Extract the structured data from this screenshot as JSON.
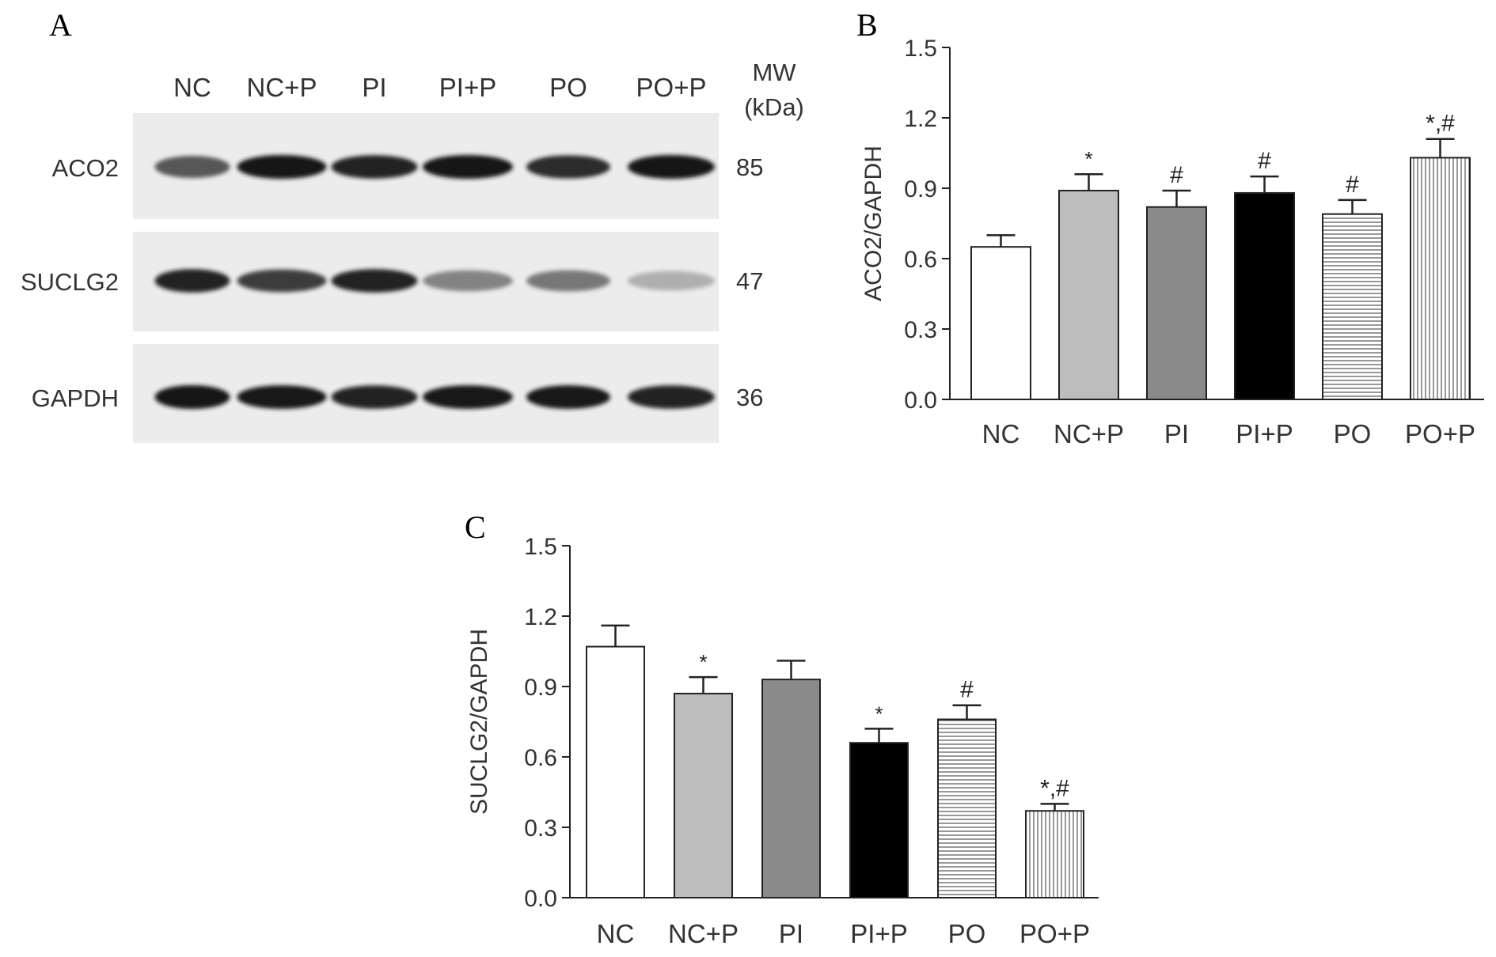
{
  "panel_a": {
    "letter": "A",
    "lanes": [
      "NC",
      "NC+P",
      "PI",
      "PI+P",
      "PO",
      "PO+P"
    ],
    "mw_header": [
      "MW",
      "(kDa)"
    ],
    "blots": [
      {
        "protein": "ACO2",
        "mw": "85",
        "intensity": [
          0.75,
          1.0,
          0.95,
          1.0,
          0.92,
          1.0
        ]
      },
      {
        "protein": "SUCLG2",
        "mw": "47",
        "intensity": [
          0.95,
          0.85,
          0.95,
          0.55,
          0.6,
          0.3
        ]
      },
      {
        "protein": "GAPDH",
        "mw": "36",
        "intensity": [
          1.0,
          0.98,
          0.95,
          0.98,
          0.98,
          0.95
        ]
      }
    ]
  },
  "chart_data": [
    {
      "panel": "B",
      "type": "bar",
      "ylabel": "ACO2/GAPDH",
      "ylim": [
        0,
        1.5
      ],
      "yticks": [
        "0.0",
        "0.3",
        "0.6",
        "0.9",
        "1.2",
        "1.5"
      ],
      "categories": [
        "NC",
        "NC+P",
        "PI",
        "PI+P",
        "PO",
        "PO+P"
      ],
      "values": [
        0.65,
        0.89,
        0.82,
        0.88,
        0.79,
        1.03
      ],
      "errors": [
        0.05,
        0.07,
        0.07,
        0.07,
        0.06,
        0.08
      ],
      "annotations": [
        "",
        "*",
        "#",
        "#",
        "#",
        "*,#"
      ]
    },
    {
      "panel": "C",
      "type": "bar",
      "ylabel": "SUCLG2/GAPDH",
      "ylim": [
        0,
        1.5
      ],
      "yticks": [
        "0.0",
        "0.3",
        "0.6",
        "0.9",
        "1.2",
        "1.5"
      ],
      "categories": [
        "NC",
        "NC+P",
        "PI",
        "PI+P",
        "PO",
        "PO+P"
      ],
      "values": [
        1.07,
        0.87,
        0.93,
        0.66,
        0.76,
        0.37
      ],
      "errors": [
        0.09,
        0.07,
        0.08,
        0.06,
        0.06,
        0.03
      ],
      "annotations": [
        "",
        "*",
        "",
        "*",
        "#",
        "*,#"
      ]
    }
  ],
  "bar_styles": [
    {
      "fill": "#ffffff",
      "pattern": "none"
    },
    {
      "fill": "#bdbdbd",
      "pattern": "none"
    },
    {
      "fill": "#8a8a8a",
      "pattern": "none"
    },
    {
      "fill": "#000000",
      "pattern": "none"
    },
    {
      "fill": "#ffffff",
      "pattern": "horizontal"
    },
    {
      "fill": "#ffffff",
      "pattern": "vertical"
    }
  ]
}
